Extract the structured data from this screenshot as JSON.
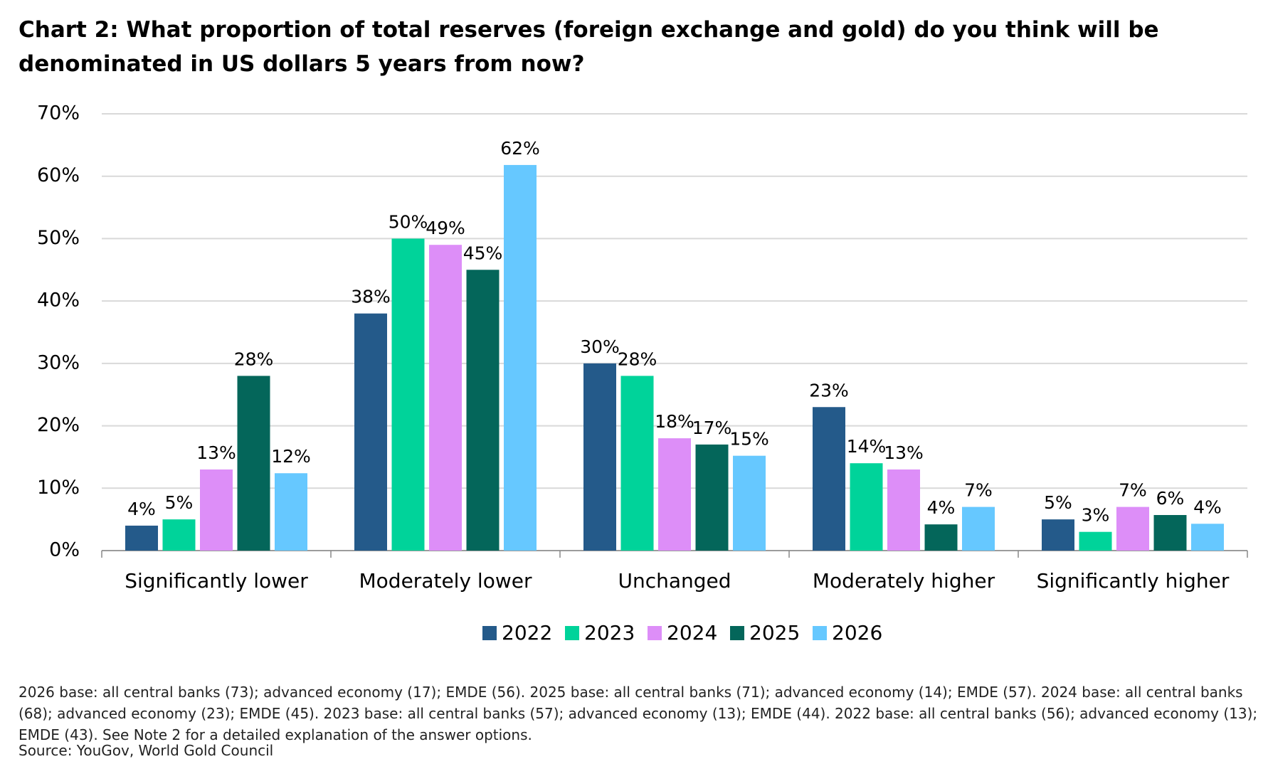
{
  "chart_data": {
    "type": "bar",
    "title": "Chart 2: What proportion of total reserves (foreign exchange and gold) do you think will be denominated in US dollars 5 years from now?",
    "categories": [
      "Significantly lower",
      "Moderately lower",
      "Unchanged",
      "Moderately higher",
      "Significantly higher"
    ],
    "series": [
      {
        "name": "2022",
        "color": "#245a8a",
        "values": [
          4,
          38,
          30,
          23,
          5
        ],
        "value_labels": [
          "4%",
          "38%",
          "30%",
          "23%",
          "5%"
        ]
      },
      {
        "name": "2023",
        "color": "#00d39a",
        "values": [
          5,
          50,
          28,
          14,
          3
        ],
        "value_labels": [
          "5%",
          "50%",
          "28%",
          "14%",
          "3%"
        ]
      },
      {
        "name": "2024",
        "color": "#dd8ef8",
        "values": [
          13,
          49,
          18,
          13,
          7
        ],
        "value_labels": [
          "13%",
          "49%",
          "18%",
          "13%",
          "7%"
        ]
      },
      {
        "name": "2025",
        "color": "#04665a",
        "values": [
          28,
          45,
          17,
          4.2,
          5.7
        ],
        "value_labels": [
          "28%",
          "45%",
          "17%",
          "4%",
          "6%"
        ]
      },
      {
        "name": "2026",
        "color": "#66c8ff",
        "values": [
          12.4,
          61.8,
          15.2,
          7,
          4.3
        ],
        "value_labels": [
          "12%",
          "62%",
          "15%",
          "7%",
          "4%"
        ]
      }
    ],
    "ylim": [
      0,
      70
    ],
    "yticks": [
      {
        "value": 0,
        "label": "0%"
      },
      {
        "value": 10,
        "label": "10%"
      },
      {
        "value": 20,
        "label": "20%"
      },
      {
        "value": 30,
        "label": "30%"
      },
      {
        "value": 40,
        "label": "40%"
      },
      {
        "value": 50,
        "label": "50%"
      },
      {
        "value": 60,
        "label": "60%"
      },
      {
        "value": 70,
        "label": "70%"
      }
    ],
    "grid": true,
    "legend": "bottom",
    "notes": "2026 base: all central banks (73); advanced economy (17); EMDE (56). 2025 base: all central banks (71); advanced economy (14); EMDE (57). 2024 base: all central banks (68); advanced economy (23); EMDE (45). 2023 base: all central banks (57); advanced economy (13); EMDE (44). 2022 base: all central banks (56); advanced economy (13); EMDE (43). See Note 2 for a detailed explanation of the answer options.",
    "source": "Source: YouGov, World Gold Council"
  }
}
